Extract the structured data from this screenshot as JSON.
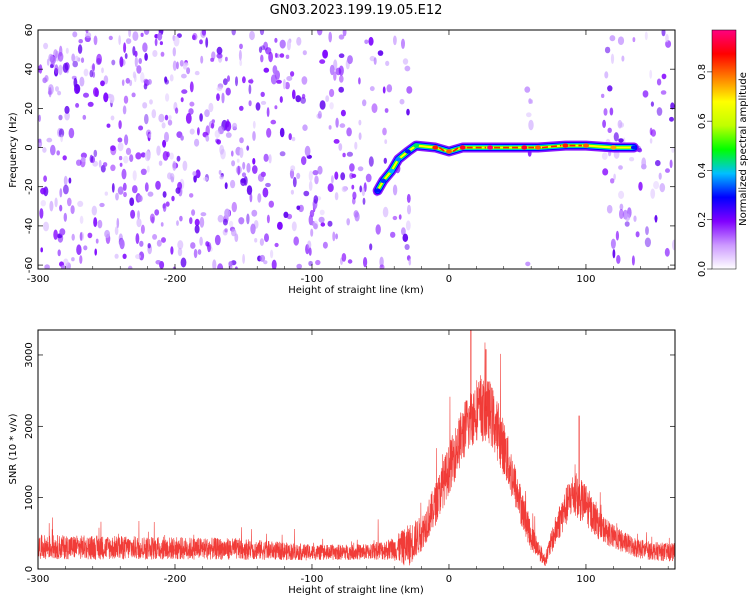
{
  "title": "GN03.2023.199.19.05.E12",
  "chart_data": [
    {
      "type": "heatmap",
      "xlabel": "Height of straight line (km)",
      "ylabel": "Frequency (Hz)",
      "xlim": [
        -300,
        165
      ],
      "ylim": [
        -62,
        60
      ],
      "xticks": [
        -300,
        -200,
        -100,
        0,
        100
      ],
      "yticks": [
        -60,
        -40,
        -20,
        0,
        20,
        40,
        60
      ],
      "colorbar": {
        "label": "Normalized spectral amplitude",
        "range": [
          0,
          0.97
        ],
        "ticks": [
          0.0,
          0.2,
          0.4,
          0.6,
          0.8
        ],
        "colors": [
          "#ffffff",
          "#cc99ff",
          "#8000ff",
          "#0000ff",
          "#00c0ff",
          "#00ff00",
          "#c0ff00",
          "#ffff00",
          "#ff8000",
          "#ff0000",
          "#ff0080"
        ]
      },
      "noise_regions_km": [
        [
          -300,
          -28
        ],
        [
          57,
          62
        ],
        [
          112,
          165
        ]
      ],
      "signal_track": {
        "points": [
          {
            "x": -52,
            "y": -22,
            "amplitude": 0.3
          },
          {
            "x": -48,
            "y": -17,
            "amplitude": 0.32
          },
          {
            "x": -42,
            "y": -12,
            "amplitude": 0.38
          },
          {
            "x": -37,
            "y": -6,
            "amplitude": 0.36
          },
          {
            "x": -30,
            "y": -2,
            "amplitude": 0.3
          },
          {
            "x": -24,
            "y": 1,
            "amplitude": 0.45
          },
          {
            "x": -10,
            "y": 0,
            "amplitude": 0.85
          },
          {
            "x": 0,
            "y": -2,
            "amplitude": 0.8
          },
          {
            "x": 10,
            "y": 0,
            "amplitude": 0.9
          },
          {
            "x": 30,
            "y": 0,
            "amplitude": 0.95
          },
          {
            "x": 55,
            "y": 0,
            "amplitude": 0.9
          },
          {
            "x": 65,
            "y": 0,
            "amplitude": 0.8
          },
          {
            "x": 85,
            "y": 1,
            "amplitude": 0.85
          },
          {
            "x": 100,
            "y": 1,
            "amplitude": 0.8
          },
          {
            "x": 120,
            "y": 0,
            "amplitude": 0.75
          },
          {
            "x": 135,
            "y": 0,
            "amplitude": 0.3
          }
        ]
      }
    },
    {
      "type": "line",
      "xlabel": "Height of straight line (km)",
      "ylabel": "SNR (10 * v/v)",
      "xlim": [
        -300,
        165
      ],
      "ylim": [
        0,
        3350
      ],
      "xticks": [
        -300,
        -200,
        -100,
        0,
        100
      ],
      "yticks": [
        0,
        1000,
        2000,
        3000
      ],
      "color": "#f0322d",
      "envelope": {
        "x": [
          -300,
          -250,
          -200,
          -150,
          -100,
          -60,
          -40,
          -30,
          -20,
          -10,
          0,
          10,
          20,
          30,
          40,
          50,
          60,
          70,
          80,
          90,
          100,
          110,
          120,
          130,
          140,
          150,
          165
        ],
        "mean": [
          310,
          300,
          290,
          280,
          230,
          240,
          280,
          320,
          500,
          900,
          1400,
          1900,
          2250,
          2200,
          1700,
          1050,
          450,
          120,
          650,
          1050,
          900,
          600,
          450,
          350,
          280,
          250,
          230
        ],
        "spread": [
          170,
          170,
          160,
          150,
          110,
          110,
          160,
          300,
          250,
          300,
          350,
          400,
          450,
          450,
          400,
          300,
          200,
          90,
          250,
          300,
          300,
          200,
          170,
          150,
          140,
          130,
          130
        ]
      },
      "peaks": [
        {
          "x": 16,
          "y": 3350
        },
        {
          "x": 27,
          "y": 3080
        },
        {
          "x": 95,
          "y": 2150
        }
      ]
    }
  ]
}
